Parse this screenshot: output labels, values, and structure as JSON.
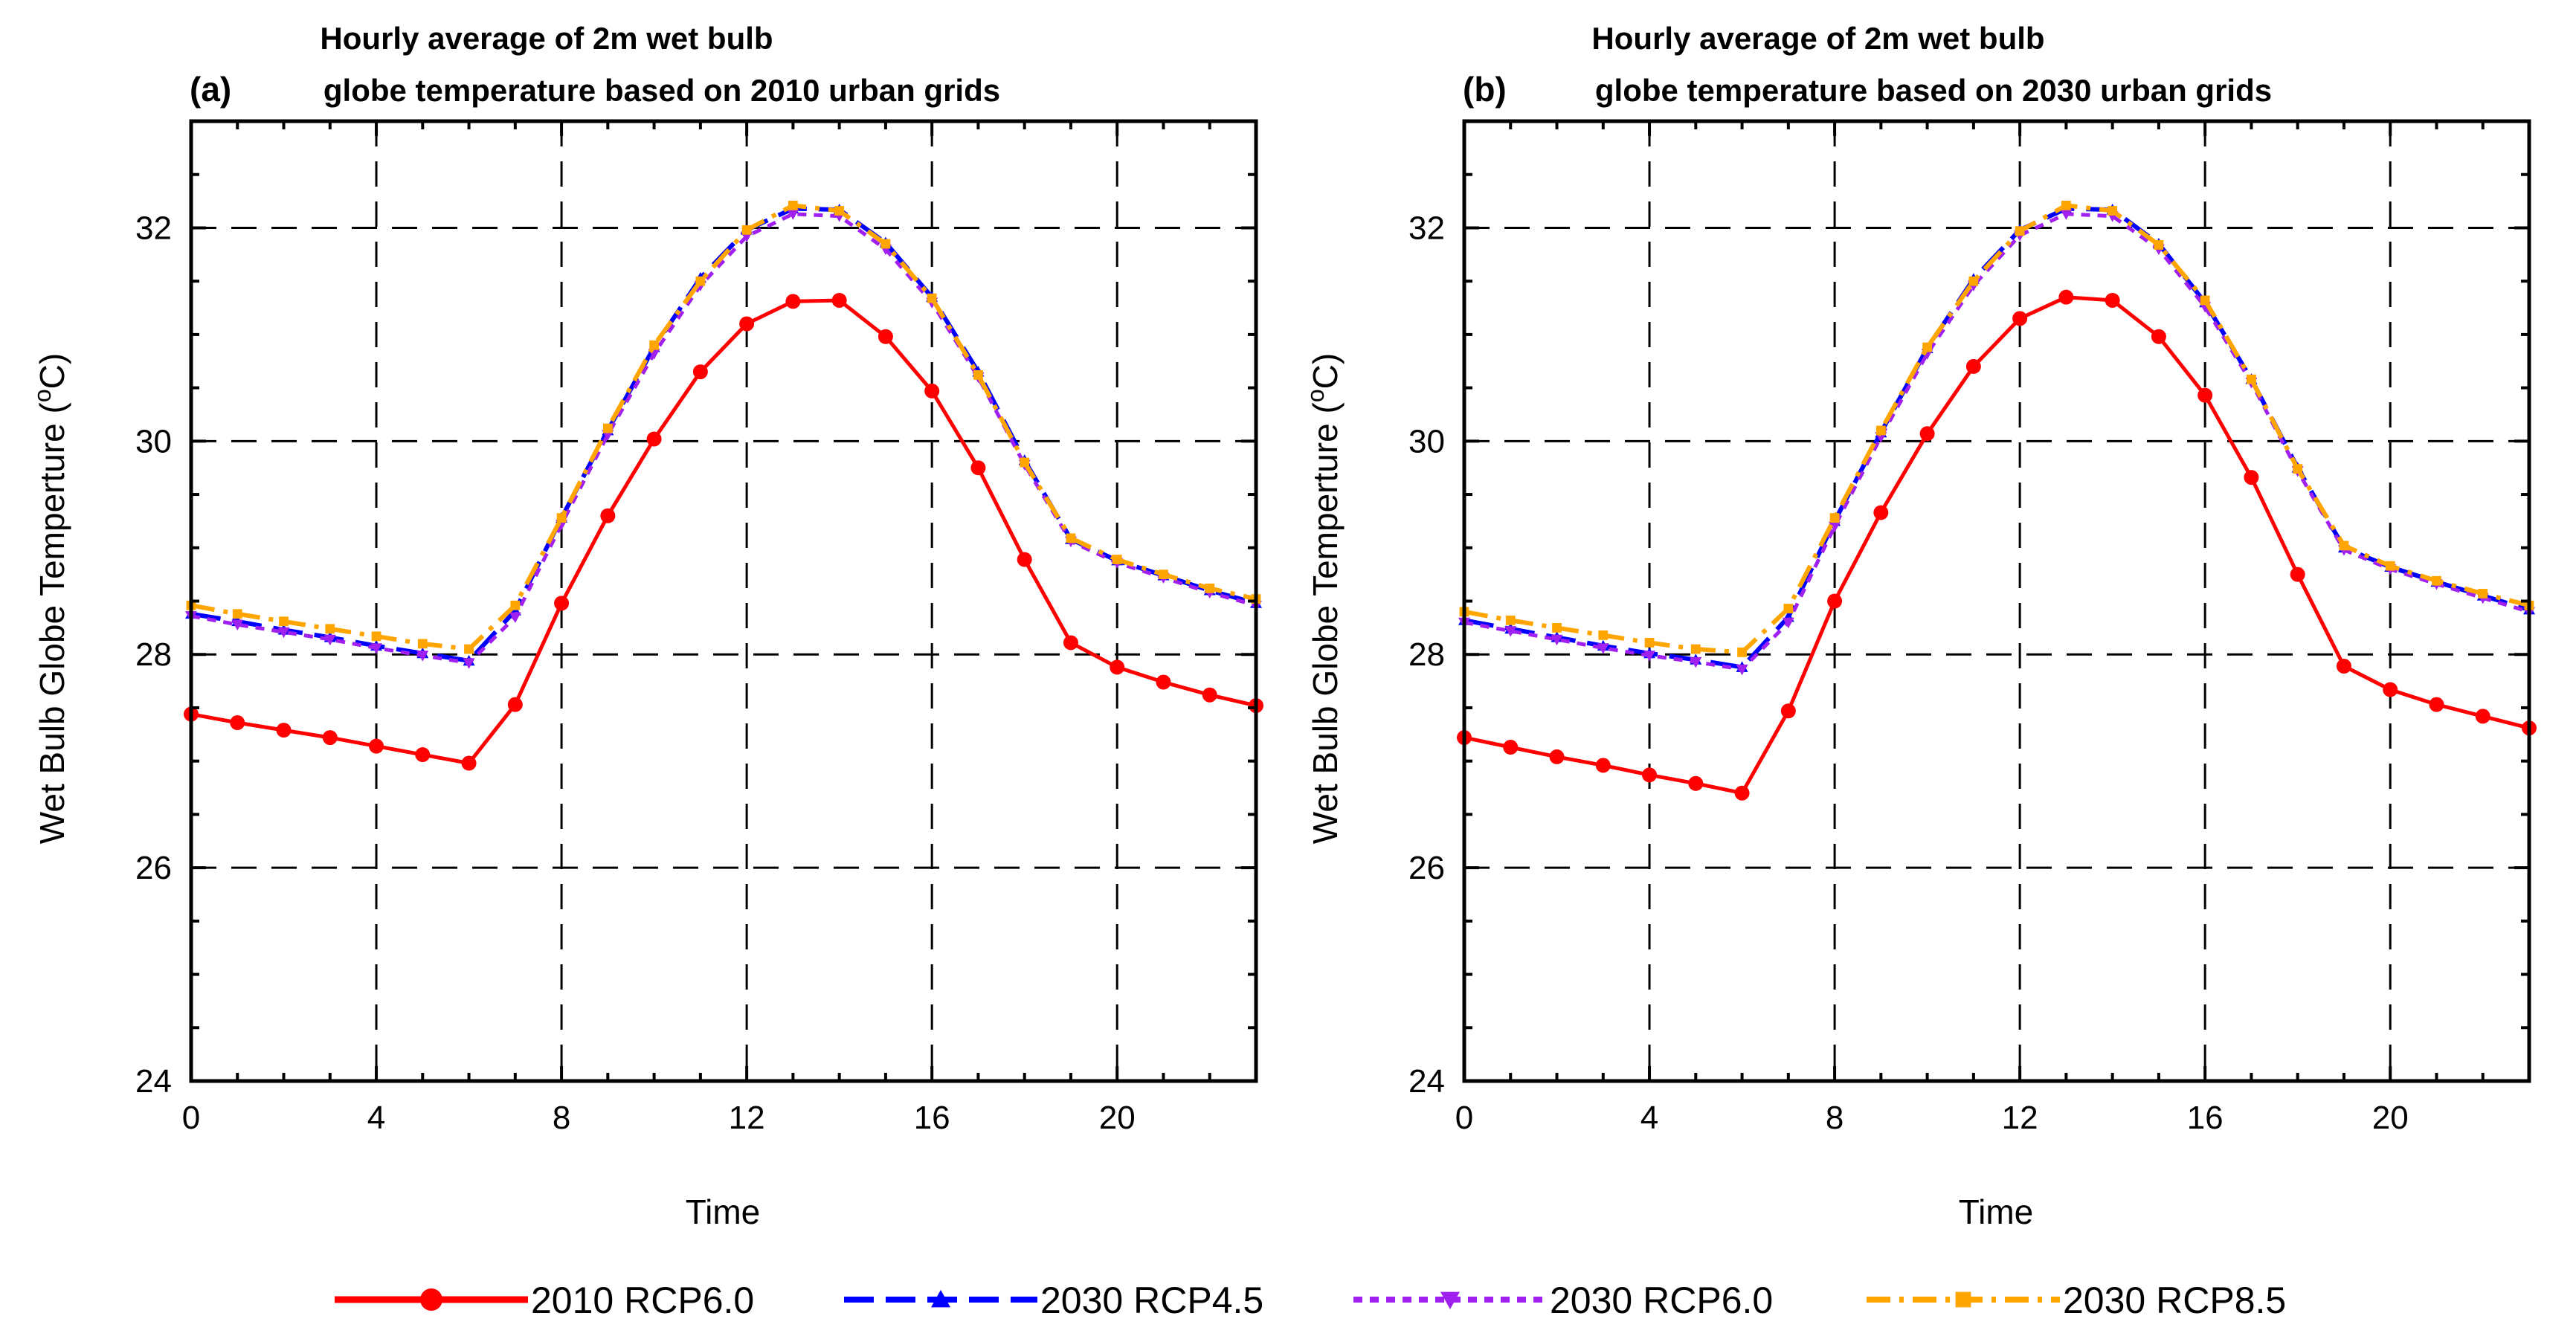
{
  "chart_data": [
    {
      "type": "line",
      "panel_label": "(a)",
      "title_line1": "Hourly average of 2m wet bulb",
      "title_line2": "globe temperature based on 2010 urban grids",
      "xlabel": "Time",
      "ylabel": "Wet Bulb Globe Temperture (",
      "ylabel_sup": "o",
      "ylabel_suffix": "C)",
      "xlim": [
        0,
        23
      ],
      "ylim": [
        24,
        33
      ],
      "xticks": [
        0,
        4,
        8,
        12,
        16,
        20
      ],
      "yticks": [
        24,
        26,
        28,
        30,
        32
      ],
      "grid": true,
      "x": [
        0,
        1,
        2,
        3,
        4,
        5,
        6,
        7,
        8,
        9,
        10,
        11,
        12,
        13,
        14,
        15,
        16,
        17,
        18,
        19,
        20,
        21,
        22,
        23
      ],
      "series": [
        {
          "name": "2010 RCP6.0",
          "values": [
            27.44,
            27.36,
            27.29,
            27.22,
            27.14,
            27.06,
            26.98,
            27.53,
            28.48,
            29.3,
            30.02,
            30.65,
            31.1,
            31.31,
            31.32,
            30.98,
            30.47,
            29.75,
            28.89,
            28.11,
            27.88,
            27.74,
            27.62,
            27.52
          ]
        },
        {
          "name": "2030 RCP4.5",
          "values": [
            28.38,
            28.31,
            28.23,
            28.16,
            28.08,
            28.01,
            27.94,
            28.41,
            29.28,
            30.1,
            30.88,
            31.53,
            31.98,
            32.18,
            32.17,
            31.86,
            31.35,
            30.65,
            29.82,
            29.08,
            28.88,
            28.74,
            28.6,
            28.48
          ]
        },
        {
          "name": "2030 RCP6.0",
          "values": [
            28.36,
            28.28,
            28.21,
            28.14,
            28.06,
            27.99,
            27.92,
            28.35,
            29.22,
            30.06,
            30.82,
            31.46,
            31.92,
            32.13,
            32.11,
            31.8,
            31.3,
            30.6,
            29.78,
            29.06,
            28.86,
            28.72,
            28.58,
            28.46
          ]
        },
        {
          "name": "2030 RCP8.5",
          "values": [
            28.46,
            28.38,
            28.31,
            28.24,
            28.17,
            28.1,
            28.05,
            28.46,
            29.28,
            30.12,
            30.9,
            31.5,
            31.98,
            32.21,
            32.16,
            31.85,
            31.34,
            30.62,
            29.8,
            29.09,
            28.89,
            28.75,
            28.62,
            28.52
          ]
        }
      ]
    },
    {
      "type": "line",
      "panel_label": "(b)",
      "title_line1": "Hourly average of 2m wet bulb",
      "title_line2": "globe temperature based on 2030 urban grids",
      "xlabel": "Time",
      "ylabel": "Wet Bulb Globe Temperture (",
      "ylabel_sup": "o",
      "ylabel_suffix": "C)",
      "xlim": [
        0,
        23
      ],
      "ylim": [
        24,
        33
      ],
      "xticks": [
        0,
        4,
        8,
        12,
        16,
        20
      ],
      "yticks": [
        24,
        26,
        28,
        30,
        32
      ],
      "grid": true,
      "x": [
        0,
        1,
        2,
        3,
        4,
        5,
        6,
        7,
        8,
        9,
        10,
        11,
        12,
        13,
        14,
        15,
        16,
        17,
        18,
        19,
        20,
        21,
        22,
        23
      ],
      "series": [
        {
          "name": "2010 RCP6.0",
          "values": [
            27.22,
            27.13,
            27.04,
            26.96,
            26.87,
            26.79,
            26.7,
            27.47,
            28.5,
            29.33,
            30.07,
            30.7,
            31.15,
            31.35,
            31.32,
            30.98,
            30.43,
            29.66,
            28.75,
            27.89,
            27.67,
            27.53,
            27.42,
            27.31
          ]
        },
        {
          "name": "2030 RCP4.5",
          "values": [
            28.32,
            28.24,
            28.16,
            28.08,
            28.01,
            27.95,
            27.88,
            28.35,
            29.25,
            30.08,
            30.87,
            31.52,
            31.98,
            32.18,
            32.17,
            31.85,
            31.3,
            30.58,
            29.75,
            29.0,
            28.82,
            28.68,
            28.55,
            28.42
          ]
        },
        {
          "name": "2030 RCP6.0",
          "values": [
            28.3,
            28.22,
            28.14,
            28.06,
            27.99,
            27.93,
            27.86,
            28.3,
            29.2,
            30.04,
            30.82,
            31.46,
            31.93,
            32.13,
            32.11,
            31.8,
            31.26,
            30.55,
            29.72,
            28.98,
            28.8,
            28.66,
            28.53,
            28.4
          ]
        },
        {
          "name": "2030 RCP8.5",
          "values": [
            28.4,
            28.32,
            28.25,
            28.18,
            28.11,
            28.05,
            28.02,
            28.43,
            29.28,
            30.1,
            30.88,
            31.5,
            31.97,
            32.21,
            32.16,
            31.84,
            31.32,
            30.58,
            29.74,
            29.02,
            28.83,
            28.69,
            28.57,
            28.46
          ]
        }
      ]
    }
  ],
  "legend": {
    "position": "bottom",
    "entries": [
      {
        "label": "2010 RCP6.0",
        "color": "#ff0000",
        "marker": "circle",
        "dash": "solid"
      },
      {
        "label": "2030 RCP4.5",
        "color": "#0000ff",
        "marker": "triangle-up",
        "dash": "long-dash"
      },
      {
        "label": "2030 RCP6.0",
        "color": "#a020f0",
        "marker": "triangle-down",
        "dash": "dot"
      },
      {
        "label": "2030 RCP8.5",
        "color": "#ffa500",
        "marker": "square",
        "dash": "dash-dot"
      }
    ]
  }
}
